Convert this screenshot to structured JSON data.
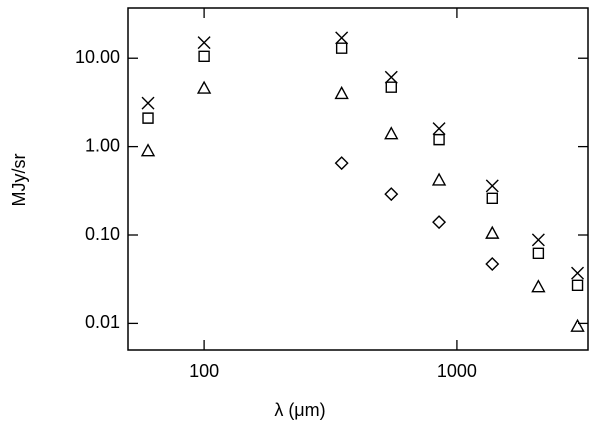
{
  "chart_data": {
    "type": "scatter",
    "xlabel": "λ (μm)",
    "ylabel": "MJy/sr",
    "x": [
      60,
      100,
      350,
      550,
      850,
      1380,
      2100,
      3000
    ],
    "xscale": "log",
    "yscale": "log",
    "xlim": [
      50,
      3300
    ],
    "ylim": [
      0.005,
      37
    ],
    "xticks": [
      100,
      1000
    ],
    "yticks": [
      {
        "value": 10,
        "label": "10.00"
      },
      {
        "value": 1,
        "label": "1.00"
      },
      {
        "value": 0.1,
        "label": "0.10"
      },
      {
        "value": 0.01,
        "label": "0.01"
      }
    ],
    "series": [
      {
        "marker": "x",
        "color": "#000000",
        "values": [
          3.1,
          15,
          17,
          6.1,
          1.6,
          0.36,
          0.088,
          0.037
        ]
      },
      {
        "marker": "square",
        "color": "#000000",
        "values": [
          2.1,
          10.5,
          13,
          4.7,
          1.2,
          0.26,
          0.062,
          0.027
        ]
      },
      {
        "marker": "triangle",
        "color": "#000000",
        "values": [
          0.9,
          4.6,
          4.0,
          1.4,
          0.42,
          0.105,
          0.026,
          0.0093
        ]
      },
      {
        "marker": "diamond",
        "color": "#000000",
        "values": [
          null,
          null,
          0.65,
          0.29,
          0.14,
          0.047,
          null,
          null
        ]
      }
    ]
  }
}
